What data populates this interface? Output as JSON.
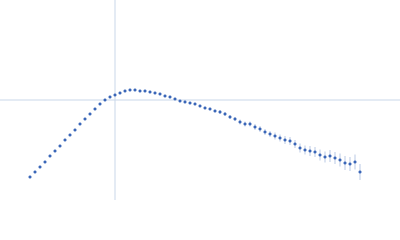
{
  "chart_data": {
    "type": "scatter",
    "xlim": [
      0,
      400
    ],
    "ylim": [
      0,
      200
    ],
    "xline": 115,
    "yline": 100,
    "color": "#3a66b8",
    "error_color": "#a9bddf",
    "line_color": "#c9d7ea",
    "x": [
      30,
      35,
      40,
      45,
      50,
      55,
      60,
      65,
      70,
      75,
      80,
      85,
      90,
      95,
      100,
      105,
      110,
      115,
      120,
      125,
      130,
      135,
      140,
      145,
      150,
      155,
      160,
      165,
      170,
      175,
      180,
      185,
      190,
      195,
      200,
      205,
      210,
      215,
      220,
      225,
      230,
      235,
      240,
      245,
      250,
      255,
      260,
      265,
      270,
      275,
      280,
      285,
      290,
      295,
      300,
      305,
      310,
      315,
      320,
      325,
      330,
      335,
      340,
      345,
      350,
      355,
      360
    ],
    "values": [
      23,
      28,
      33,
      38,
      44,
      49,
      54,
      60,
      65,
      70,
      76,
      81,
      86,
      91,
      96,
      100,
      103,
      105,
      107,
      109,
      110,
      110,
      109,
      109,
      108,
      107,
      106,
      104,
      103,
      101,
      99,
      98,
      97,
      96,
      94,
      92,
      91,
      89,
      88,
      86,
      83,
      81,
      78,
      76,
      76,
      73,
      71,
      68,
      66,
      64,
      62,
      60,
      59,
      56,
      52,
      50,
      49,
      48,
      45,
      43,
      44,
      42,
      40,
      37,
      36,
      38,
      28
    ],
    "errors": [
      0.5,
      0.5,
      0.5,
      0.5,
      0.5,
      0.5,
      0.5,
      0.5,
      0.5,
      0.5,
      0.5,
      0.5,
      0.5,
      0.5,
      0.5,
      0.5,
      0.5,
      0.5,
      0.5,
      0.5,
      0.5,
      0.5,
      0.5,
      0.5,
      0.5,
      1,
      1,
      1,
      1,
      1,
      1,
      1,
      1,
      1.5,
      1.5,
      1.5,
      1.5,
      1.5,
      2,
      2,
      2,
      2,
      2.5,
      2.5,
      2.5,
      3,
      3,
      3,
      3,
      3.5,
      3.5,
      4,
      4,
      4,
      4.5,
      4.5,
      5,
      5,
      5.5,
      5.5,
      6,
      6,
      6.5,
      7,
      7,
      7.5,
      8
    ]
  }
}
